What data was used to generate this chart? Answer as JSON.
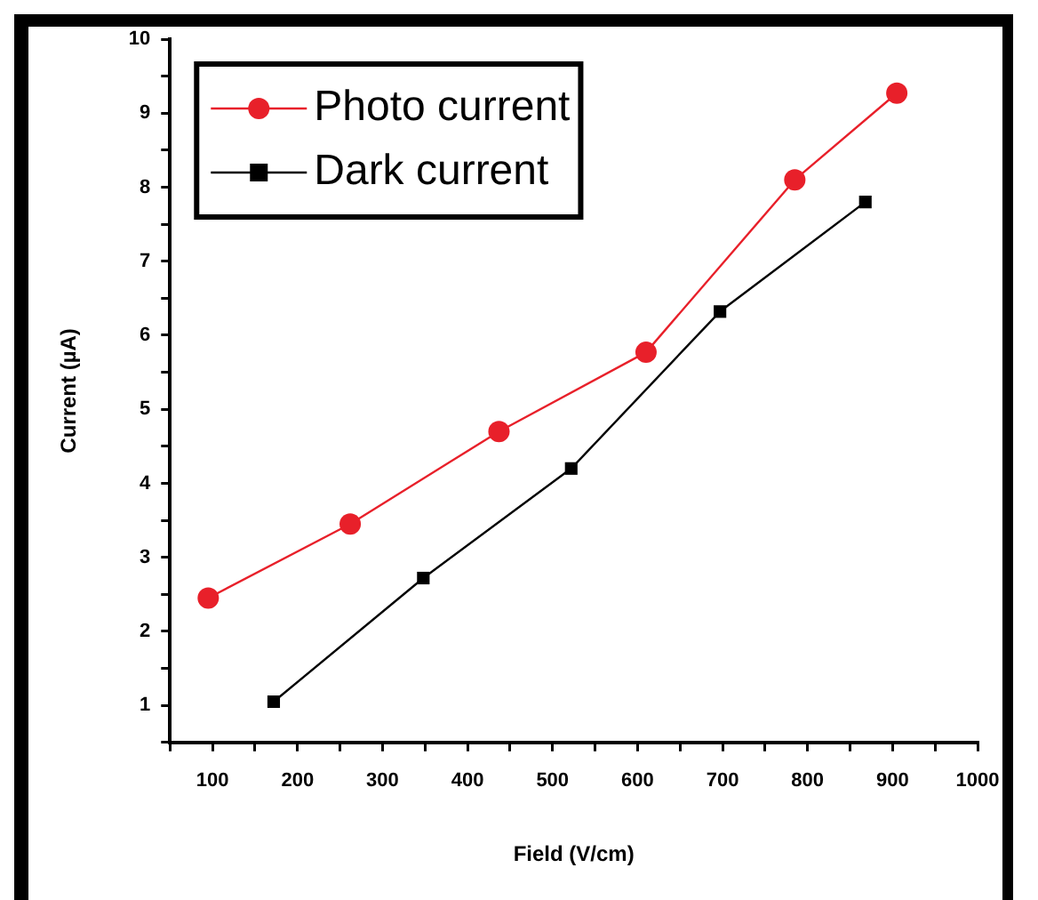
{
  "chart_data": {
    "type": "line",
    "xlabel": "Field (V/cm)",
    "ylabel": "Current (µA)",
    "xlim": [
      50,
      1000
    ],
    "xticks": [
      {
        "value": 50,
        "label": null
      },
      100,
      {
        "value": 150,
        "label": null
      },
      200,
      {
        "value": 250,
        "label": null
      },
      300,
      {
        "value": 350,
        "label": null
      },
      400,
      {
        "value": 450,
        "label": null
      },
      500,
      {
        "value": 550,
        "label": null
      },
      600,
      {
        "value": 650,
        "label": null
      },
      700,
      {
        "value": 750,
        "label": null
      },
      800,
      {
        "value": 850,
        "label": null
      },
      900,
      {
        "value": 950,
        "label": null
      },
      1000
    ],
    "ylim": [
      0.5,
      10
    ],
    "yticks": [
      {
        "value": 0.5,
        "label": null
      },
      1,
      {
        "value": 1.5,
        "label": null
      },
      2,
      {
        "value": 2.5,
        "label": null
      },
      3,
      {
        "value": 3.5,
        "label": null
      },
      4,
      {
        "value": 4.5,
        "label": null
      },
      5,
      {
        "value": 5.5,
        "label": null
      },
      6,
      {
        "value": 6.5,
        "label": null
      },
      7,
      {
        "value": 7.5,
        "label": null
      },
      8,
      {
        "value": 8.5,
        "label": null
      },
      9,
      {
        "value": 9.5,
        "label": null
      },
      10
    ],
    "grid": false,
    "legend": "top left",
    "line_style": "solid",
    "series": [
      {
        "name": "Photo current",
        "color": "#e8202a",
        "marker": "circle",
        "x": [
          95,
          262,
          437,
          610,
          785,
          905
        ],
        "values": [
          2.45,
          3.45,
          4.7,
          5.77,
          8.1,
          9.27
        ]
      },
      {
        "name": "Dark current",
        "color": "#000000",
        "marker": "square",
        "x": [
          172,
          348,
          522,
          697,
          868
        ],
        "values": [
          1.05,
          2.72,
          4.2,
          6.32,
          7.8
        ]
      }
    ]
  }
}
